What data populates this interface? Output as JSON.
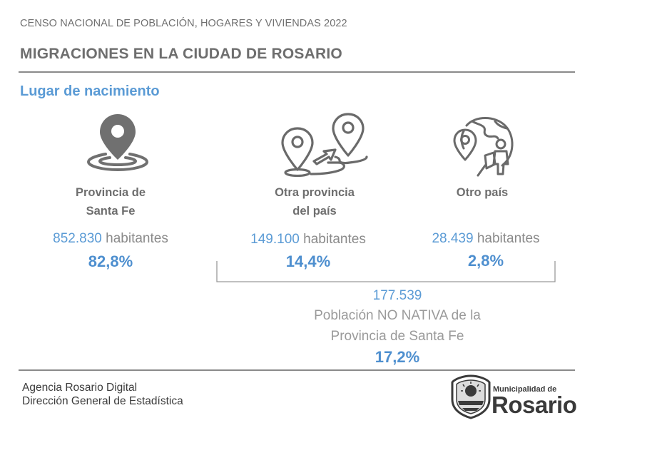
{
  "header": {
    "survey": "CENSO NACIONAL DE POBLACIÓN, HOGARES Y VIVIENDAS 2022",
    "title": "MIGRACIONES EN LA CIUDAD DE ROSARIO"
  },
  "section_title": "Lugar de nacimiento",
  "groups": [
    {
      "icon": "location-pin-icon",
      "label_line1": "Provincia de",
      "label_line2": "Santa Fe",
      "count": "852.830",
      "unit": "habitantes",
      "percent": "82,8%"
    },
    {
      "icon": "route-between-pins-icon",
      "label_line1": "Otra provincia",
      "label_line2": "del país",
      "count": "149.100",
      "unit": "habitantes",
      "percent": "14,4%"
    },
    {
      "icon": "globe-traveler-icon",
      "label_line1": "Otro país",
      "label_line2": "",
      "count": "28.439",
      "unit": "habitantes",
      "percent": "2,8%"
    }
  ],
  "non_native": {
    "count": "177.539",
    "line1": "Población NO NATIVA de la",
    "line2": "Provincia de Santa Fe",
    "percent": "17,2%"
  },
  "footer": {
    "line1": "Agencia Rosario Digital",
    "line2": "Dirección General de Estadística"
  },
  "logo": {
    "small": "Municipalidad de",
    "big": "Rosario"
  },
  "colors": {
    "accent": "#5b9bd5",
    "text": "#6e6e6e",
    "rule": "#8a8a8a"
  }
}
